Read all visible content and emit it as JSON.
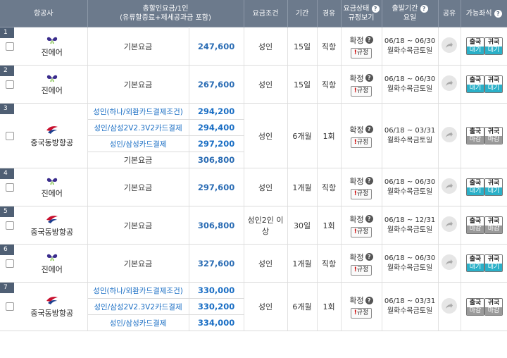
{
  "header": {
    "airline": "항공사",
    "price_line1": "총할인요금/1인",
    "price_line2": "(유류할증료+제세공과금 포함)",
    "condition": "요금조건",
    "duration": "기간",
    "route": "경유",
    "status_line1": "요금상태",
    "status_line2": "규정보기",
    "period_line1": "출발기간",
    "period_line2": "요일",
    "share": "공유",
    "seats": "가능좌석",
    "help_glyph": "?"
  },
  "labels": {
    "confirm": "확정",
    "rule": "규정",
    "rule_mark": "!",
    "dep": "출국",
    "ret": "귀국",
    "open": "대기",
    "closed": "마감"
  },
  "colors": {
    "header_bg": "#6c7a8c",
    "price_blue": "#1a6ec4",
    "seat_open": "#2ab0c8",
    "seat_closed": "#9a9a9a",
    "jin_air_logo": "#3a2c8c",
    "china_eastern_logo": "#c8102e"
  },
  "icons": {
    "jin_air": "butterfly-logo-icon",
    "china_eastern": "swallow-logo-icon",
    "share": "share-arrow-icon",
    "help": "question-circle-icon"
  },
  "flights": [
    {
      "num": "1",
      "airline": "진에어",
      "logo": "jinair",
      "fares": [
        {
          "label": "기본요금",
          "price": "247,600",
          "type": "base"
        }
      ],
      "condition": "성인",
      "duration": "15일",
      "route": "직항",
      "status": "확정",
      "period": "06/18 ~ 06/30",
      "days": "월화수목금토일",
      "seats": "open"
    },
    {
      "num": "2",
      "airline": "진에어",
      "logo": "jinair",
      "fares": [
        {
          "label": "기본요금",
          "price": "267,600",
          "type": "base"
        }
      ],
      "condition": "성인",
      "duration": "15일",
      "route": "직항",
      "status": "확정",
      "period": "06/18 ~ 06/30",
      "days": "월화수목금토일",
      "seats": "open"
    },
    {
      "num": "3",
      "airline": "중국동방항공",
      "logo": "eastern",
      "fares": [
        {
          "label": "성인(하나/외환카드결제조건)",
          "price": "294,200",
          "type": "card"
        },
        {
          "label": "성인/삼성2V2.3V2카드결제",
          "price": "294,400",
          "type": "card"
        },
        {
          "label": "성인/삼성카드결제",
          "price": "297,200",
          "type": "card"
        },
        {
          "label": "기본요금",
          "price": "306,800",
          "type": "base"
        }
      ],
      "condition": "성인",
      "duration": "6개월",
      "route": "1회",
      "status": "확정",
      "period": "06/18 ~ 03/31",
      "days": "월화수목금토일",
      "seats": "closed"
    },
    {
      "num": "4",
      "airline": "진에어",
      "logo": "jinair",
      "fares": [
        {
          "label": "기본요금",
          "price": "297,600",
          "type": "base"
        }
      ],
      "condition": "성인",
      "duration": "1개월",
      "route": "직항",
      "status": "확정",
      "period": "06/18 ~ 06/30",
      "days": "월화수목금토일",
      "seats": "open"
    },
    {
      "num": "5",
      "airline": "중국동방항공",
      "logo": "eastern",
      "fares": [
        {
          "label": "기본요금",
          "price": "306,800",
          "type": "base"
        }
      ],
      "condition": "성인2인 이상",
      "duration": "30일",
      "route": "1회",
      "status": "확정",
      "period": "06/18 ~ 12/31",
      "days": "월화수목금토일",
      "seats": "closed"
    },
    {
      "num": "6",
      "airline": "진에어",
      "logo": "jinair",
      "fares": [
        {
          "label": "기본요금",
          "price": "327,600",
          "type": "base"
        }
      ],
      "condition": "성인",
      "duration": "1개월",
      "route": "직항",
      "status": "확정",
      "period": "06/18 ~ 06/30",
      "days": "월화수목금토일",
      "seats": "open"
    },
    {
      "num": "7",
      "airline": "중국동방항공",
      "logo": "eastern",
      "fares": [
        {
          "label": "성인(하나/외환카드결제조건)",
          "price": "330,000",
          "type": "card"
        },
        {
          "label": "성인/삼성2V2.3V2카드결제",
          "price": "330,200",
          "type": "card"
        },
        {
          "label": "성인/삼성카드결제",
          "price": "334,000",
          "type": "card"
        }
      ],
      "condition": "성인",
      "duration": "6개월",
      "route": "1회",
      "status": "확정",
      "period": "06/18 ~ 03/31",
      "days": "월화수목금토일",
      "seats": "closed"
    }
  ]
}
